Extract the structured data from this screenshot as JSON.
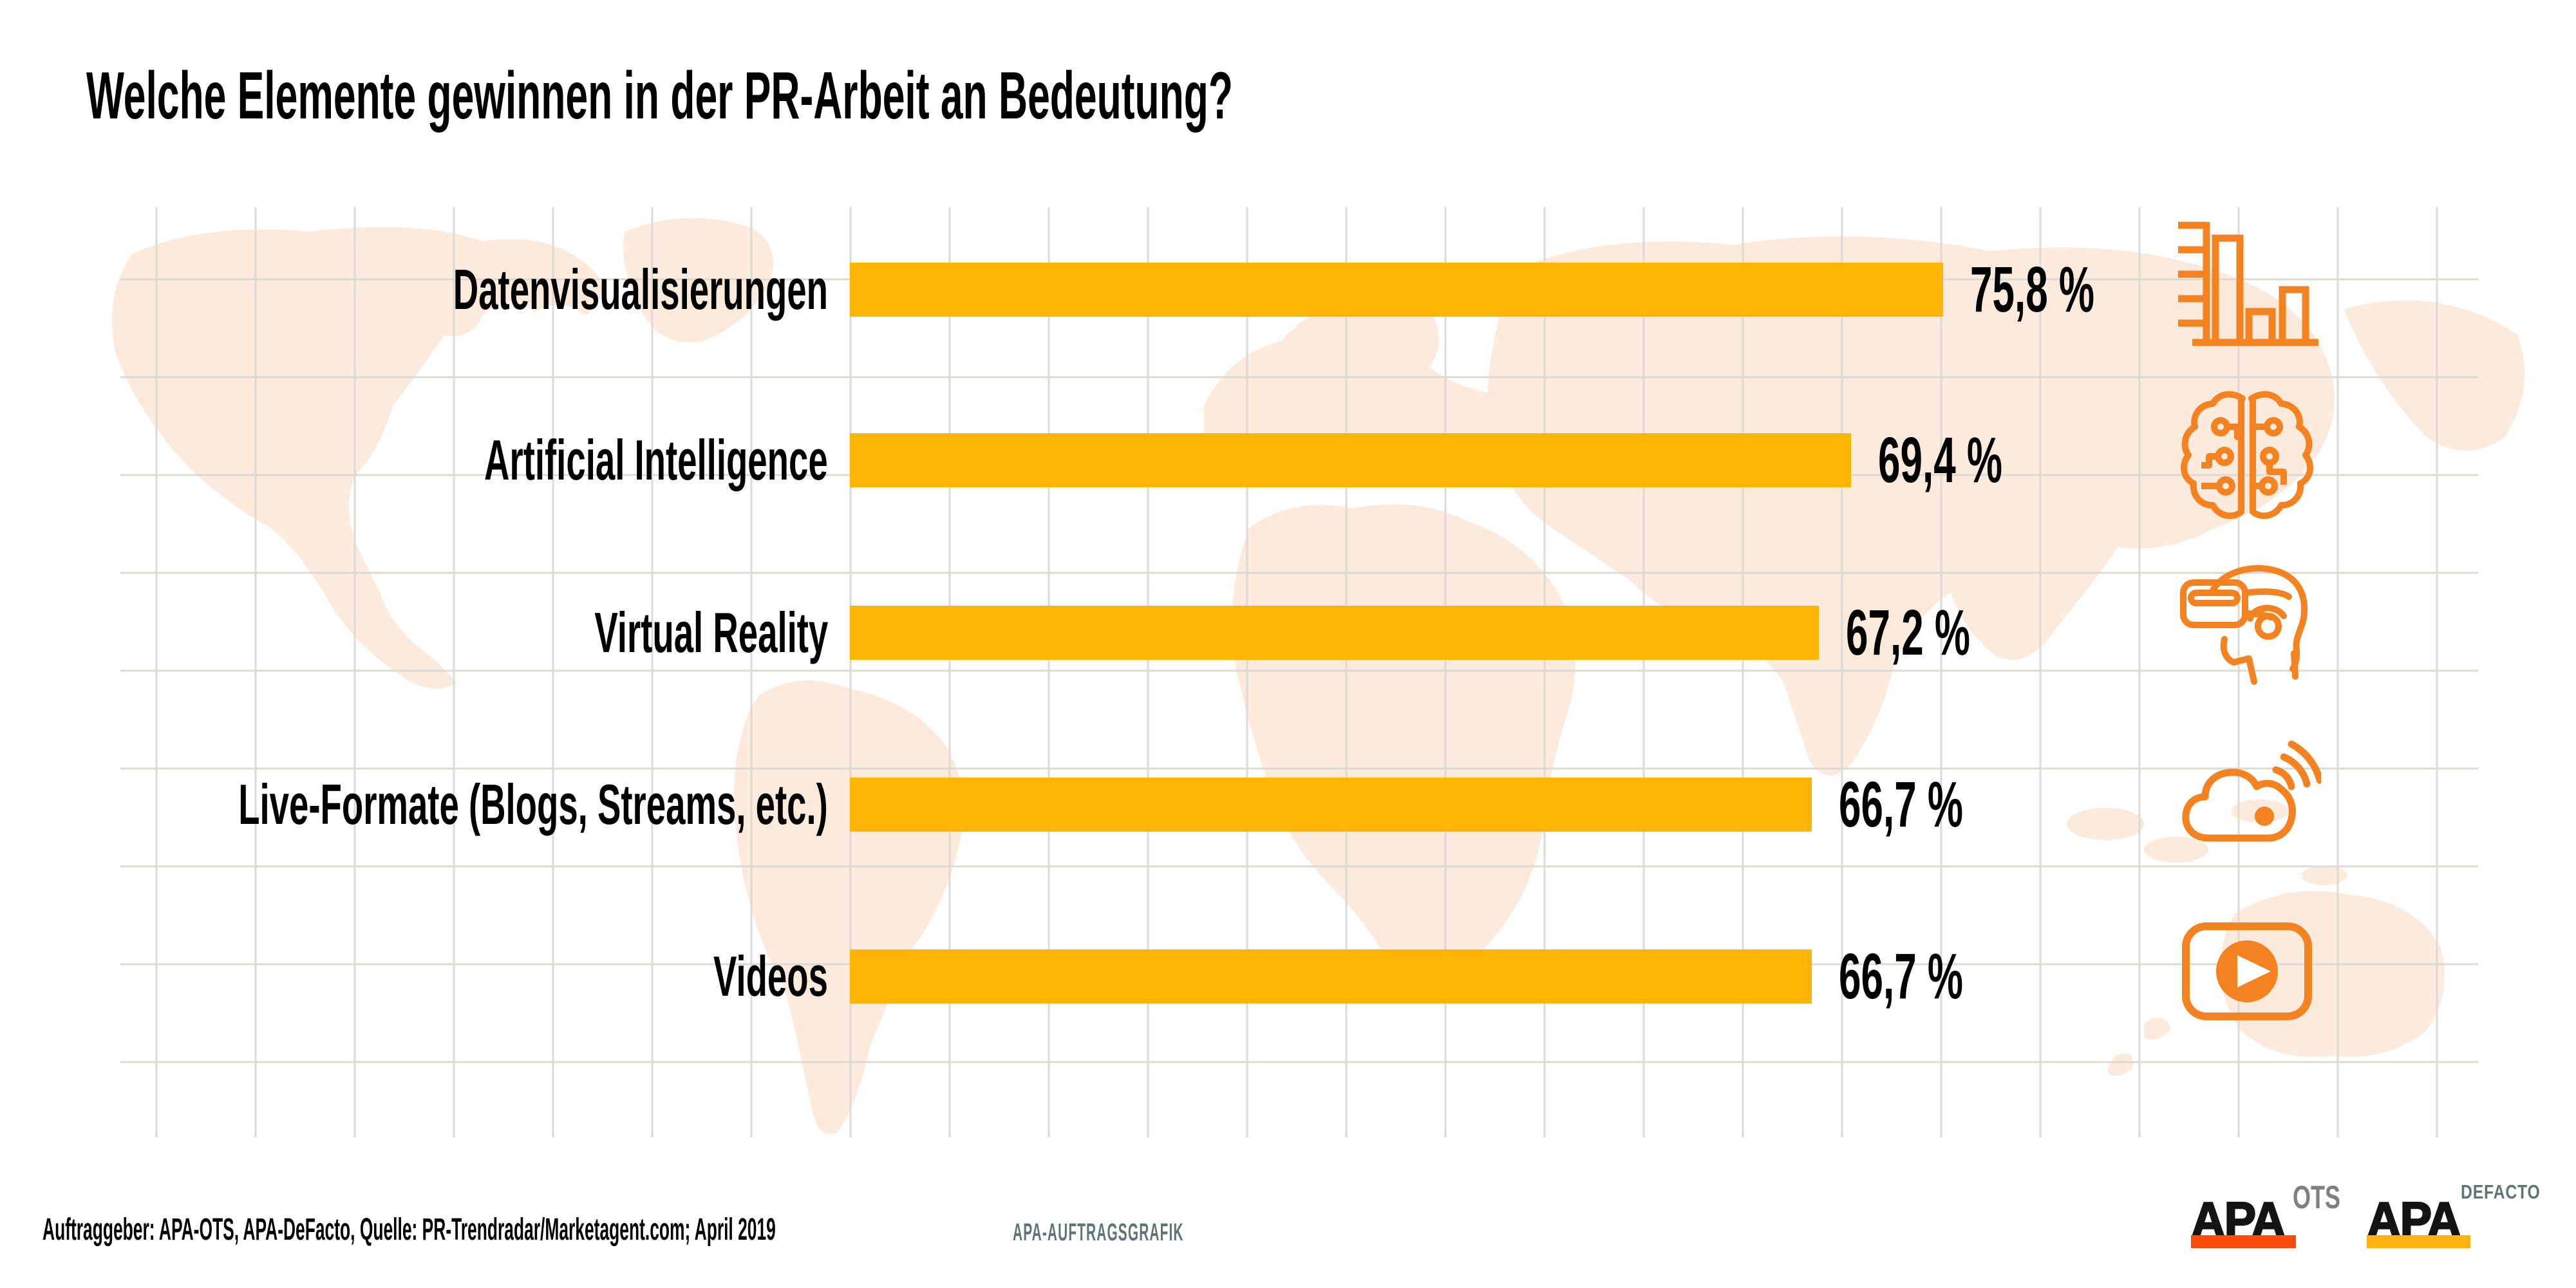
{
  "title": "Welche Elemente gewinnen in der PR-Arbeit an Bedeutung?",
  "chart_data": {
    "type": "bar",
    "orientation": "horizontal",
    "title": "Welche Elemente gewinnen in der PR-Arbeit an Bedeutung?",
    "categories": [
      "Datenvisualisierungen",
      "Artificial Intelligence",
      "Virtual Reality",
      "Live-Formate (Blogs, Streams, etc.)",
      "Videos"
    ],
    "values": [
      75.8,
      69.4,
      67.2,
      66.7,
      66.7
    ],
    "value_labels": [
      "75,8 %",
      "69,4 %",
      "67,2 %",
      "66,7 %",
      "66,7 %"
    ],
    "unit": "%",
    "xlim": [
      0,
      80
    ],
    "grid": true,
    "legend": false,
    "bar_color": "#fdb402",
    "icon_color": "#f58220",
    "icons": [
      "bar-chart",
      "ai-brain",
      "vr-headset",
      "streaming-cloud",
      "video-play"
    ]
  },
  "footer": {
    "source": "Auftraggeber: APA-OTS, APA-DeFacto, Quelle: PR-Trendradar/Marketagent.com; April 2019",
    "credit": "APA-AUFTRAGSGRAFIK",
    "credit_color": "#5f7573"
  },
  "logos": {
    "ots": {
      "brand": "APA",
      "suffix": "OTS",
      "bar_color": "#fb4a0c",
      "suffix_color": "#7f7f7f"
    },
    "defacto": {
      "brand": "APA",
      "suffix": "DEFACTO",
      "bar_color": "#fdb210",
      "suffix_color": "#5f7573"
    }
  },
  "background": {
    "map_color": "#fcebdc",
    "grid_color": "#dcdad2"
  }
}
